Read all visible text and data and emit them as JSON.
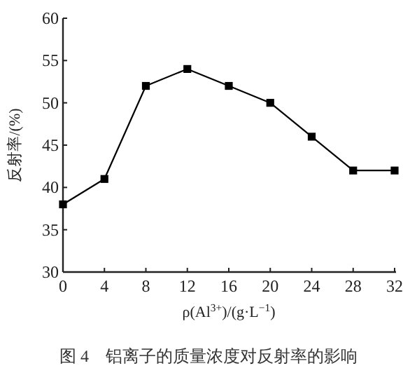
{
  "chart_data": {
    "type": "line",
    "x": [
      0,
      4,
      8,
      12,
      16,
      20,
      24,
      28,
      32
    ],
    "series": [
      {
        "color": "#000000",
        "values": [
          38,
          41,
          52,
          54,
          52,
          50,
          46,
          42,
          42
        ]
      }
    ],
    "xlim": [
      0,
      32
    ],
    "xticks": [
      0,
      4,
      8,
      12,
      16,
      20,
      24,
      28,
      32
    ],
    "ylim": [
      30,
      60
    ],
    "yticks": [
      30,
      35,
      40,
      45,
      50,
      55,
      60
    ],
    "xlabel": "ρ(Al$^{3+}$)/(g·L$^{−1}$)",
    "ylabel": "反射率/(%)",
    "annotations": [
      "图 4　铝离子的质量浓度对反射率的影响"
    ],
    "marker": "square",
    "line_style": "solid",
    "grid": false
  }
}
